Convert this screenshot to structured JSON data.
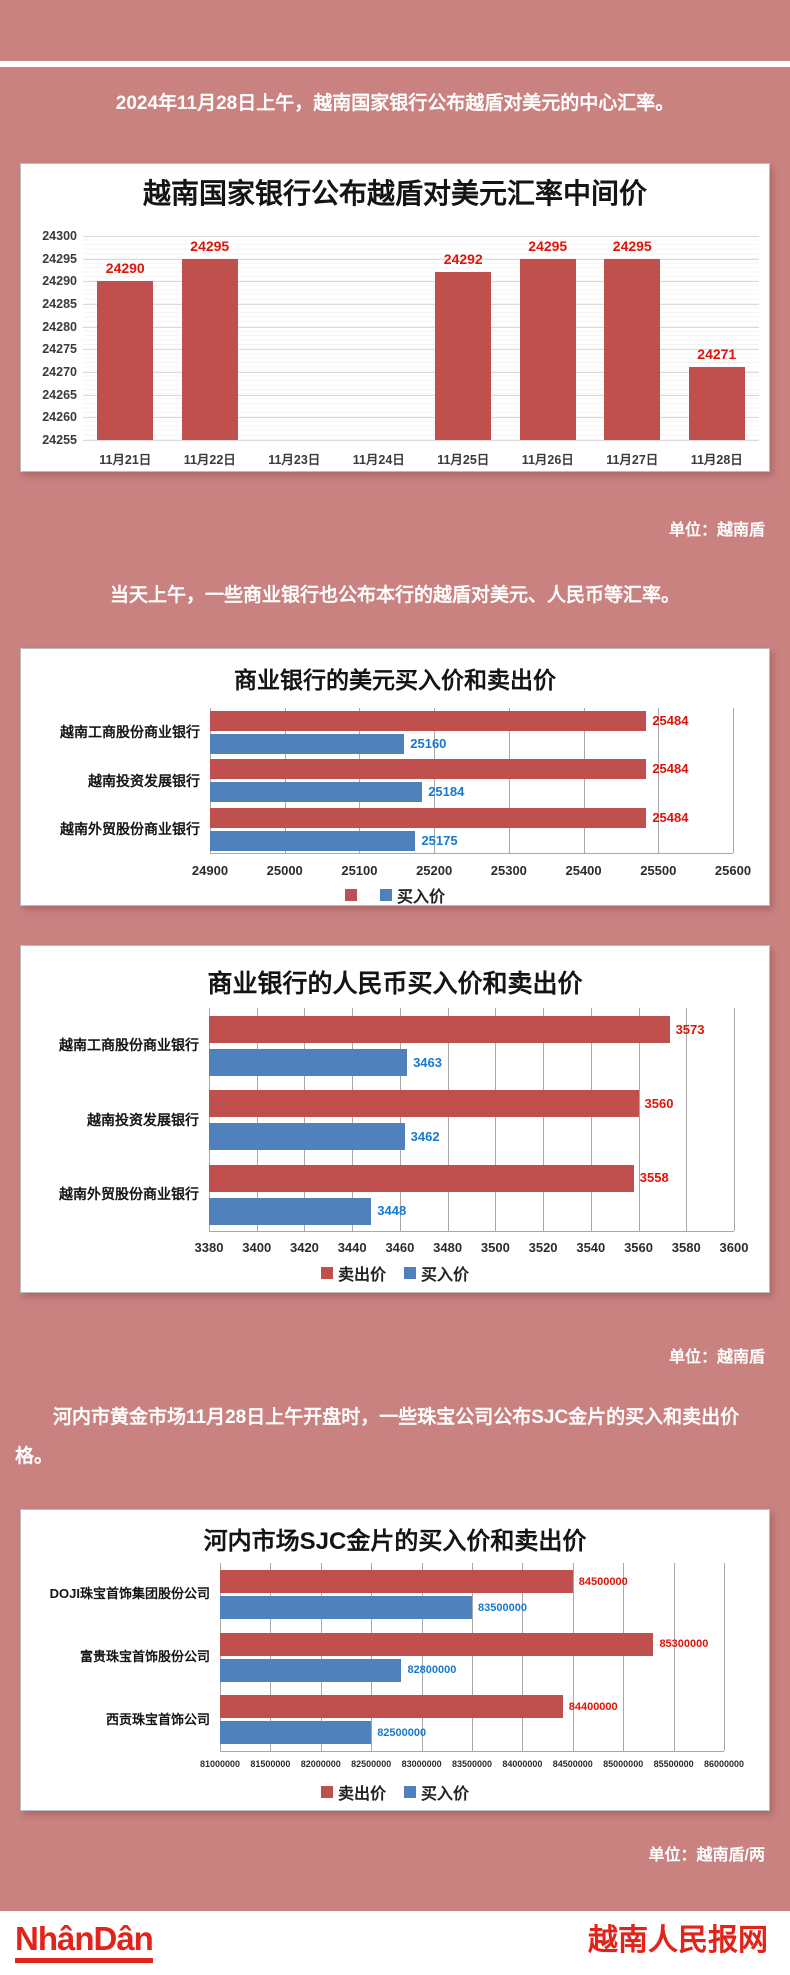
{
  "page": {
    "bg_color": "#c98280",
    "intro1": "2024年11月28日上午，越南国家银行公布越盾对美元的中心汇率。",
    "intro2": "当天上午，一些商业银行也公布本行的越盾对美元、人民币等汇率。",
    "intro3": "河内市黄金市场11月28日上午开盘时，一些珠宝公司公布SJC金片的买入和卖出价格。",
    "unit1": "单位：越南盾",
    "unit2": "单位：越南盾",
    "unit3": "单位：越南盾/两"
  },
  "colors": {
    "sell_bar": "#c0504d",
    "buy_bar": "#4f81bd",
    "sell_label": "#e01309",
    "buy_label": "#1779cf",
    "brand_red": "#e2231a"
  },
  "footer": {
    "logo_text": "NhânDân",
    "site_name": "越南人民报网"
  },
  "chart_data": [
    {
      "type": "bar",
      "title": "越南国家银行公布越盾对美元汇率中间价",
      "categories": [
        "11月21日",
        "11月22日",
        "11月23日",
        "11月24日",
        "11月25日",
        "11月26日",
        "11月27日",
        "11月28日"
      ],
      "values": [
        24290,
        24295,
        null,
        null,
        24292,
        24295,
        24295,
        24271
      ],
      "ylim": [
        24255,
        24300
      ],
      "yticks": [
        24300,
        24295,
        24290,
        24285,
        24280,
        24275,
        24270,
        24265,
        24260,
        24255
      ],
      "bar_color": "#c0504d",
      "label_color": "#e01309",
      "grid": "horizontal",
      "legend": "none",
      "unit": "越南盾"
    },
    {
      "type": "bar-horizontal",
      "title": "商业银行的美元买入价和卖出价",
      "categories": [
        "越南工商股份商业银行",
        "越南投资发展银行",
        "越南外贸股份商业银行"
      ],
      "series": [
        {
          "name": "",
          "role": "sell",
          "color": "#c0504d",
          "label_color": "#e01309",
          "values": [
            25484,
            25484,
            25484
          ]
        },
        {
          "name": "买入价",
          "role": "buy",
          "color": "#4f81bd",
          "label_color": "#1779cf",
          "values": [
            25160,
            25184,
            25175
          ]
        }
      ],
      "xlim": [
        24900,
        25600
      ],
      "xticks": [
        24900,
        25000,
        25100,
        25200,
        25300,
        25400,
        25500,
        25600
      ],
      "grid": "vertical",
      "legend": "bottom",
      "unit": "越南盾"
    },
    {
      "type": "bar-horizontal",
      "title": "商业银行的人民币买入价和卖出价",
      "categories": [
        "越南工商股份商业银行",
        "越南投资发展银行",
        "越南外贸股份商业银行"
      ],
      "series": [
        {
          "name": "卖出价",
          "role": "sell",
          "color": "#c0504d",
          "label_color": "#e01309",
          "values": [
            3573,
            3560,
            3558
          ]
        },
        {
          "name": "买入价",
          "role": "buy",
          "color": "#4f81bd",
          "label_color": "#1779cf",
          "values": [
            3463,
            3462,
            3448
          ]
        }
      ],
      "xlim": [
        3380,
        3600
      ],
      "xticks": [
        3380,
        3400,
        3420,
        3440,
        3460,
        3480,
        3500,
        3520,
        3540,
        3560,
        3580,
        3600
      ],
      "grid": "vertical",
      "legend": "bottom",
      "unit": "越南盾"
    },
    {
      "type": "bar-horizontal",
      "title": "河内市场SJC金片的买入价和卖出价",
      "categories": [
        "DOJI珠宝首饰集团股份公司",
        "富贵珠宝首饰股份公司",
        "西贡珠宝首饰公司"
      ],
      "series": [
        {
          "name": "卖出价",
          "role": "sell",
          "color": "#c0504d",
          "label_color": "#e01309",
          "values": [
            84500000,
            85300000,
            84400000
          ]
        },
        {
          "name": "买入价",
          "role": "buy",
          "color": "#4f81bd",
          "label_color": "#1779cf",
          "values": [
            83500000,
            82800000,
            82500000
          ]
        }
      ],
      "xlim": [
        81000000,
        86000000
      ],
      "xticks": [
        81000000,
        81500000,
        82000000,
        82500000,
        83000000,
        83500000,
        84000000,
        84500000,
        85000000,
        85500000,
        86000000
      ],
      "grid": "vertical",
      "legend": "bottom",
      "unit": "越南盾/两"
    }
  ]
}
